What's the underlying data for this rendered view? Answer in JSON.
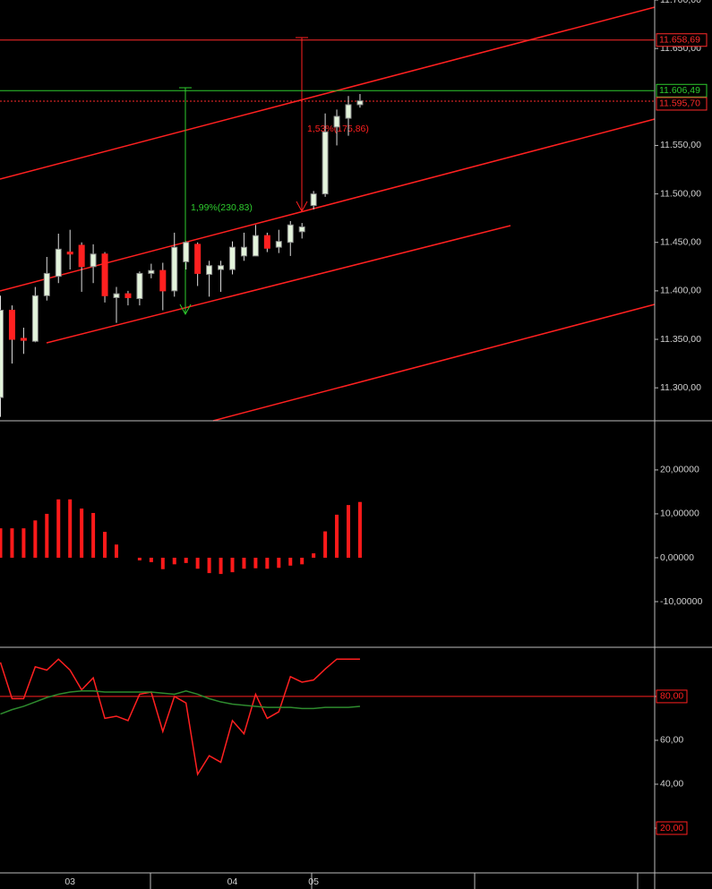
{
  "chart_data": [
    {
      "type": "candlestick",
      "categories": [
        null,
        null,
        null,
        null,
        null,
        null,
        "03",
        null,
        null,
        null,
        null,
        null,
        null,
        null,
        null,
        null,
        null,
        null,
        null,
        null,
        "04",
        null,
        null,
        null,
        null,
        null,
        null,
        "05",
        null,
        null,
        null,
        null
      ],
      "open": [
        11290,
        11380,
        11351,
        11348,
        11395,
        11415,
        11440,
        11447,
        11425,
        11438,
        11393,
        11397,
        11392,
        11418,
        11421,
        11400,
        11430,
        11448,
        11417,
        11422,
        11422,
        11436,
        11436,
        11457,
        11445,
        11450,
        11461,
        11488,
        11500,
        11569,
        11578,
        11592
      ],
      "high": [
        11395,
        11385,
        11362,
        11404,
        11435,
        11459,
        11463,
        11450,
        11448,
        11440,
        11404,
        11400,
        11420,
        11428,
        11429,
        11460,
        11451,
        11450,
        11431,
        11431,
        11451,
        11460,
        11468,
        11460,
        11463,
        11472,
        11470,
        11503,
        11583,
        11587,
        11601,
        11603
      ],
      "low": [
        11270,
        11325,
        11335,
        11347,
        11390,
        11408,
        11422,
        11399,
        11408,
        11388,
        11367,
        11385,
        11385,
        11413,
        11380,
        11394,
        11422,
        11405,
        11394,
        11399,
        11417,
        11431,
        11436,
        11440,
        11439,
        11436,
        11454,
        11484,
        11497,
        11550,
        11560,
        11589
      ],
      "close": [
        11380,
        11350,
        11349,
        11395,
        11418,
        11443,
        11438,
        11425,
        11438,
        11395,
        11397,
        11393,
        11418,
        11421,
        11400,
        11445,
        11450,
        11418,
        11426,
        11426,
        11445,
        11445,
        11457,
        11444,
        11451,
        11468,
        11466,
        11500,
        11564,
        11580,
        11592,
        11596
      ],
      "up_color": "#e4f4dc",
      "down_color": "#ff2020",
      "ylim": [
        11266,
        11700
      ],
      "yticks": [
        {
          "value": 11300,
          "label": "11.300,00"
        },
        {
          "value": 11350,
          "label": "11.350,00"
        },
        {
          "value": 11400,
          "label": "11.400,00"
        },
        {
          "value": 11450,
          "label": "11.450,00"
        },
        {
          "value": 11500,
          "label": "11.500,00"
        },
        {
          "value": 11550,
          "label": "11.550,00"
        },
        {
          "value": 11650,
          "label": "11.650,00"
        },
        {
          "value": 11700,
          "label": "11.700,00"
        }
      ],
      "price_lines": [
        {
          "value": 11658.69,
          "label": "11.658,69",
          "color": "#ff2a2a"
        },
        {
          "value": 11606.49,
          "label": "11.606,49",
          "color": "#2ecc2e"
        },
        {
          "value": 11595.7,
          "label": "11.595,70",
          "color": "#ff2a2a"
        }
      ],
      "annotations": [
        "1,99%(230,83)",
        "1,53%(175,86)"
      ]
    },
    {
      "type": "bar",
      "color": "#ff1a1a",
      "values": [
        6.7,
        6.7,
        6.7,
        8.5,
        10,
        13.3,
        13.3,
        11.2,
        10.2,
        5.9,
        3,
        null,
        -0.6,
        -1,
        -2.6,
        -1.5,
        -1.2,
        -2.5,
        -3.5,
        -3.7,
        -3.3,
        -2.5,
        -2.4,
        -2.5,
        -2.3,
        -1.8,
        -1.5,
        1,
        6,
        9.8,
        12,
        12.7
      ],
      "ylim": [
        -20.4,
        31.2
      ],
      "yticks": [
        {
          "value": -10,
          "label": "-10,00000"
        },
        {
          "value": 0,
          "label": "0,00000"
        },
        {
          "value": 10,
          "label": "10,00000"
        },
        {
          "value": 20,
          "label": "20,00000"
        }
      ]
    },
    {
      "type": "line",
      "series": [
        {
          "color": "#ff2020",
          "values": [
            95.5,
            79,
            79,
            93.5,
            92,
            97,
            92,
            83,
            88.5,
            70,
            71,
            69,
            81,
            82,
            64,
            80,
            77,
            44.5,
            53,
            50,
            69,
            63,
            81,
            70,
            73,
            89,
            86.5,
            87.5,
            92.5,
            97,
            97,
            97
          ]
        },
        {
          "color": "#2e8b2e",
          "values": [
            72,
            74,
            75.5,
            77.5,
            79.5,
            81,
            82,
            82.5,
            82.5,
            82,
            82,
            82,
            82,
            82,
            81.5,
            81,
            82.5,
            81,
            79,
            77.5,
            76.5,
            76,
            75.5,
            75,
            75,
            75,
            74.5,
            74.5,
            75,
            75,
            75,
            75.5
          ]
        }
      ],
      "ylim": [
        -0.4,
        102.4
      ],
      "yticks": [
        {
          "value": 20,
          "label": "20,00"
        },
        {
          "value": 40,
          "label": "40,00"
        },
        {
          "value": 60,
          "label": "60,00"
        },
        {
          "value": 80,
          "label": "80,00"
        }
      ],
      "boxed_ticks": [
        20,
        80
      ],
      "level_line": 80
    }
  ]
}
